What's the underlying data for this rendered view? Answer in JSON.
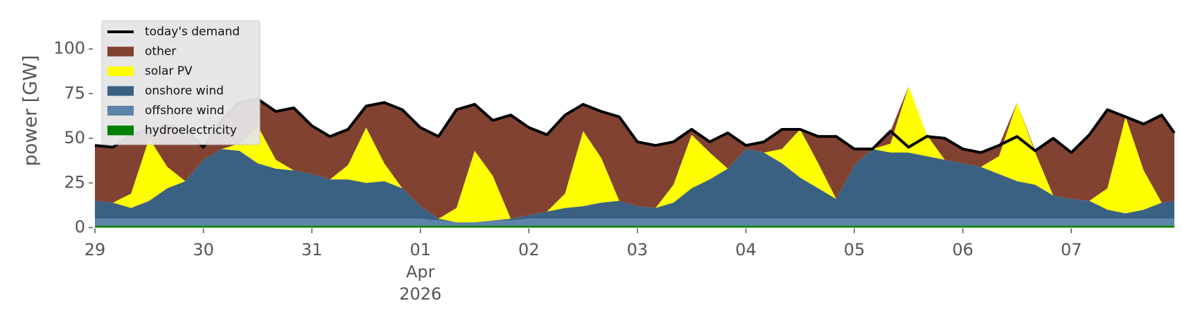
{
  "chart_data": {
    "type": "stacked-area",
    "y_label": "power [GW]",
    "x": [
      0,
      0.167,
      0.333,
      0.5,
      0.667,
      0.833,
      1,
      1.167,
      1.333,
      1.5,
      1.667,
      1.833,
      2,
      2.167,
      2.333,
      2.5,
      2.667,
      2.833,
      3,
      3.167,
      3.333,
      3.5,
      3.667,
      3.833,
      4,
      4.167,
      4.333,
      4.5,
      4.667,
      4.833,
      5,
      5.167,
      5.333,
      5.5,
      5.667,
      5.833,
      6,
      6.167,
      6.333,
      6.5,
      6.667,
      6.833,
      7,
      7.167,
      7.333,
      7.5,
      7.667,
      7.833,
      8,
      8.167,
      8.333,
      8.5,
      8.667,
      8.833,
      9,
      9.167,
      9.333,
      9.5,
      9.667,
      9.833,
      9.95
    ],
    "xlim": [
      0,
      9.95
    ],
    "xticks": [
      {
        "value": 0,
        "label": "29"
      },
      {
        "value": 1,
        "label": "30"
      },
      {
        "value": 2,
        "label": "31"
      },
      {
        "value": 3,
        "label": "01\nApr\n2026"
      },
      {
        "value": 4,
        "label": "02"
      },
      {
        "value": 5,
        "label": "03"
      },
      {
        "value": 6,
        "label": "04"
      },
      {
        "value": 7,
        "label": "05"
      },
      {
        "value": 8,
        "label": "06"
      },
      {
        "value": 9,
        "label": "07"
      }
    ],
    "ylim": [
      0,
      115
    ],
    "yticks": [
      0,
      25,
      50,
      75,
      100
    ],
    "legend": "upper left",
    "demand": {
      "name": "today's demand",
      "color": "#000000",
      "values": [
        46,
        45,
        52,
        55,
        57,
        55,
        45,
        60,
        70,
        72,
        65,
        67,
        57,
        51,
        55,
        68,
        70,
        66,
        56,
        51,
        66,
        69,
        60,
        63,
        56,
        52,
        63,
        69,
        65,
        62,
        48,
        46,
        48,
        55,
        48,
        53,
        46,
        48,
        55,
        55,
        51,
        51,
        44,
        44,
        54,
        45,
        51,
        50,
        44,
        42,
        46,
        51,
        43,
        50,
        42,
        52,
        66,
        62,
        58,
        63,
        53
      ]
    },
    "series": [
      {
        "name": "other",
        "color": "#824232",
        "values": [
          31,
          31,
          33,
          5,
          23,
          29,
          7,
          16,
          23,
          15,
          27,
          35,
          27,
          24,
          20,
          12,
          34,
          44,
          44,
          46,
          55,
          26,
          31,
          58,
          49,
          43,
          44,
          15,
          26,
          47,
          36,
          35,
          24,
          3,
          6,
          20,
          2,
          6,
          11,
          0,
          15,
          35,
          9,
          0,
          7,
          0,
          0,
          12,
          8,
          8,
          6,
          0,
          1,
          32,
          26,
          37,
          44,
          0,
          26,
          49,
          38
        ]
      },
      {
        "name": "solar PV",
        "color": "#ffff00",
        "values": [
          0,
          0,
          8,
          35,
          12,
          0,
          0,
          0,
          4,
          21,
          5,
          0,
          0,
          0,
          8,
          31,
          10,
          0,
          0,
          0,
          8,
          40,
          25,
          0,
          0,
          0,
          8,
          42,
          25,
          0,
          0,
          0,
          10,
          30,
          15,
          0,
          0,
          0,
          8,
          27,
          14,
          0,
          0,
          0,
          5,
          37,
          12,
          0,
          0,
          0,
          10,
          44,
          18,
          0,
          0,
          0,
          12,
          54,
          22,
          0,
          0
        ]
      },
      {
        "name": "onshore wind",
        "color": "#3b6182",
        "values": [
          10,
          9,
          6,
          10,
          17,
          21,
          33,
          39,
          38,
          31,
          28,
          27,
          25,
          22,
          22,
          20,
          21,
          17,
          7,
          1,
          0,
          0,
          0,
          1,
          2,
          4,
          6,
          7,
          9,
          10,
          7,
          6,
          9,
          17,
          22,
          28,
          39,
          37,
          31,
          23,
          17,
          11,
          30,
          39,
          37,
          37,
          35,
          33,
          31,
          29,
          25,
          21,
          19,
          13,
          11,
          10,
          5,
          3,
          5,
          9,
          10
        ]
      },
      {
        "name": "offshore wind",
        "color": "#5d84a8",
        "values": [
          4,
          4,
          4,
          4,
          4,
          4,
          4,
          4,
          4,
          4,
          4,
          4,
          4,
          4,
          4,
          4,
          4,
          4,
          4,
          3,
          2,
          2,
          3,
          3,
          4,
          4,
          4,
          4,
          4,
          4,
          4,
          4,
          4,
          4,
          4,
          4,
          4,
          4,
          4,
          4,
          4,
          4,
          4,
          4,
          4,
          4,
          4,
          4,
          4,
          4,
          4,
          4,
          4,
          4,
          4,
          4,
          4,
          4,
          4,
          4,
          4
        ]
      },
      {
        "name": "hydroelectricity",
        "color": "#008000",
        "values": [
          1,
          1,
          1,
          1,
          1,
          1,
          1,
          1,
          1,
          1,
          1,
          1,
          1,
          1,
          1,
          1,
          1,
          1,
          1,
          1,
          1,
          1,
          1,
          1,
          1,
          1,
          1,
          1,
          1,
          1,
          1,
          1,
          1,
          1,
          1,
          1,
          1,
          1,
          1,
          1,
          1,
          1,
          1,
          1,
          1,
          1,
          1,
          1,
          1,
          1,
          1,
          1,
          1,
          1,
          1,
          1,
          1,
          1,
          1,
          1,
          1
        ]
      }
    ]
  }
}
